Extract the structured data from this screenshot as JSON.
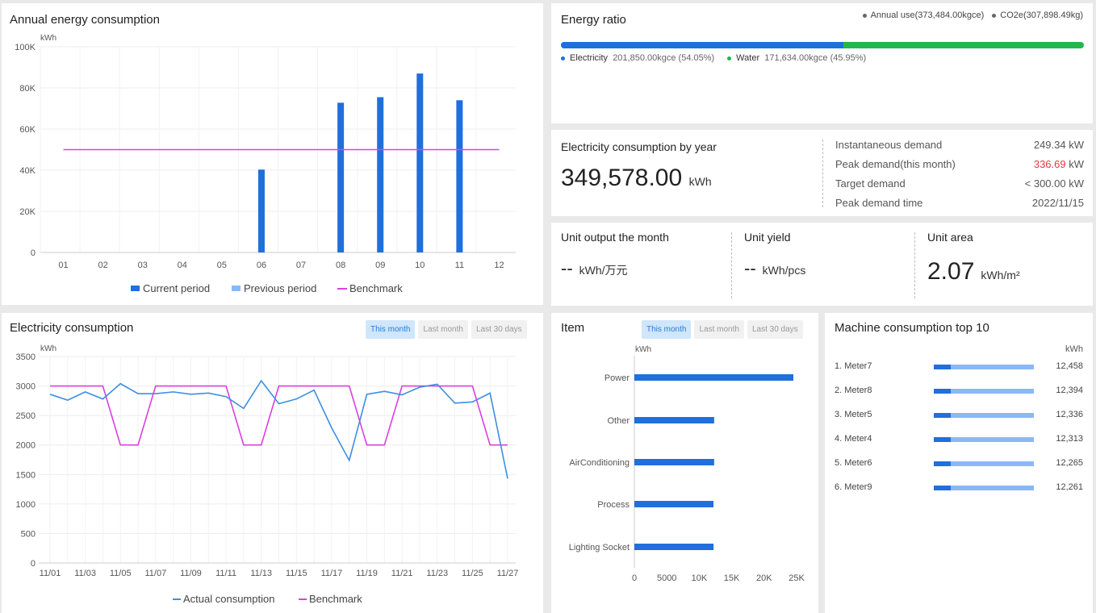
{
  "annual": {
    "title": "Annual energy consumption",
    "unit": "kWh",
    "chart_data": {
      "type": "bar",
      "categories": [
        "01",
        "02",
        "03",
        "04",
        "05",
        "06",
        "07",
        "08",
        "09",
        "10",
        "11",
        "12"
      ],
      "series": [
        {
          "name": "Current period",
          "values": [
            0,
            0,
            0,
            0,
            0,
            40300,
            0,
            72800,
            75500,
            87000,
            74000,
            0
          ],
          "color": "#1f6fdc"
        },
        {
          "name": "Previous period",
          "values": [
            0,
            0,
            0,
            0,
            0,
            0,
            0,
            0,
            0,
            0,
            0,
            0
          ],
          "color": "#8bb8f5"
        },
        {
          "name": "Benchmark",
          "type": "line",
          "values": [
            50000,
            50000,
            50000,
            50000,
            50000,
            50000,
            50000,
            50000,
            50000,
            50000,
            50000,
            50000
          ],
          "color": "#e040e0"
        }
      ],
      "ylim": [
        0,
        100000
      ],
      "yticks": [
        "0",
        "20K",
        "40K",
        "60K",
        "80K",
        "100K"
      ],
      "grid": true,
      "legend": "bottom"
    }
  },
  "ratio": {
    "title": "Energy ratio",
    "annual_use": "Annual use(373,484.00kgce)",
    "co2": "CO2e(307,898.49kg)",
    "electricity_label": "Electricity",
    "electricity_value": "201,850.00kgce (54.05%)",
    "electricity_fraction": 0.5405,
    "water_label": "Water",
    "water_value": "171,634.00kgce (45.95%)",
    "electricity_color": "#1f6fdc",
    "water_color": "#20b84a"
  },
  "yearly": {
    "title": "Electricity consumption by year",
    "value": "349,578.00",
    "unit": "kWh",
    "rows": [
      {
        "label": "Instantaneous demand",
        "value": "249.34 kW"
      },
      {
        "label": "Peak demand(this month)",
        "value_red": "336.69",
        "value_unit": " kW"
      },
      {
        "label": "Target demand",
        "value": "< 300.00 kW"
      },
      {
        "label": "Peak demand time",
        "value": "2022/11/15"
      }
    ]
  },
  "units": [
    {
      "title": "Unit output the month",
      "value": "--",
      "unit": "kWh/万元"
    },
    {
      "title": "Unit yield",
      "value": "--",
      "unit": "kWh/pcs"
    },
    {
      "title": "Unit area",
      "value": "2.07",
      "unit": "kWh/m²"
    }
  ],
  "elec": {
    "title": "Electricity consumption",
    "unit": "kWh",
    "tabs": [
      "This month",
      "Last month",
      "Last 30 days"
    ],
    "chart_data": {
      "type": "line",
      "x": [
        "11/01",
        "11/02",
        "11/03",
        "11/04",
        "11/05",
        "11/06",
        "11/07",
        "11/08",
        "11/09",
        "11/10",
        "11/11",
        "11/12",
        "11/13",
        "11/14",
        "11/15",
        "11/16",
        "11/17",
        "11/18",
        "11/19",
        "11/20",
        "11/21",
        "11/22",
        "11/23",
        "11/24",
        "11/25",
        "11/26",
        "11/27"
      ],
      "xticks": [
        "11/01",
        "11/03",
        "11/05",
        "11/07",
        "11/09",
        "11/11",
        "11/13",
        "11/15",
        "11/17",
        "11/19",
        "11/21",
        "11/23",
        "11/25",
        "11/27"
      ],
      "series": [
        {
          "name": "Actual consumption",
          "color": "#3d8fe0",
          "values": [
            2860,
            2760,
            2900,
            2780,
            3040,
            2870,
            2870,
            2900,
            2860,
            2880,
            2820,
            2620,
            3090,
            2700,
            2780,
            2930,
            2290,
            1740,
            2860,
            2910,
            2850,
            2980,
            3030,
            2710,
            2730,
            2880,
            1430
          ]
        },
        {
          "name": "Benchmark",
          "color": "#dc3ee0",
          "values": [
            3000,
            3000,
            3000,
            3000,
            2000,
            2000,
            3000,
            3000,
            3000,
            3000,
            3000,
            2000,
            2000,
            3000,
            3000,
            3000,
            3000,
            3000,
            2000,
            2000,
            3000,
            3000,
            3000,
            3000,
            3000,
            2000,
            2000
          ]
        }
      ],
      "ylim": [
        0,
        3500
      ],
      "yticks": [
        "0",
        "500",
        "1000",
        "1500",
        "2000",
        "2500",
        "3000",
        "3500"
      ],
      "grid": true,
      "legend": "bottom"
    }
  },
  "item": {
    "title": "Item",
    "unit": "kWh",
    "tabs": [
      "This month",
      "Last month",
      "Last 30 days"
    ],
    "chart_data": {
      "type": "bar",
      "orientation": "horizontal",
      "categories": [
        "Power",
        "Other",
        "AirConditioning",
        "Process",
        "Lighting Socket"
      ],
      "values": [
        24500,
        12300,
        12300,
        12200,
        12200
      ],
      "xlim": [
        0,
        25000
      ],
      "xticks": [
        "0",
        "5000",
        "10K",
        "15K",
        "20K",
        "25K"
      ],
      "color": "#1f6fdc"
    }
  },
  "machines": {
    "title": "Machine consumption top 10",
    "unit": "kWh",
    "rows": [
      {
        "name": "1. Meter7",
        "value": "12,458",
        "fraction": 0.17
      },
      {
        "name": "2. Meter8",
        "value": "12,394",
        "fraction": 0.17
      },
      {
        "name": "3. Meter5",
        "value": "12,336",
        "fraction": 0.17
      },
      {
        "name": "4. Meter4",
        "value": "12,313",
        "fraction": 0.17
      },
      {
        "name": "5. Meter6",
        "value": "12,265",
        "fraction": 0.17
      },
      {
        "name": "6. Meter9",
        "value": "12,261",
        "fraction": 0.17
      }
    ]
  }
}
